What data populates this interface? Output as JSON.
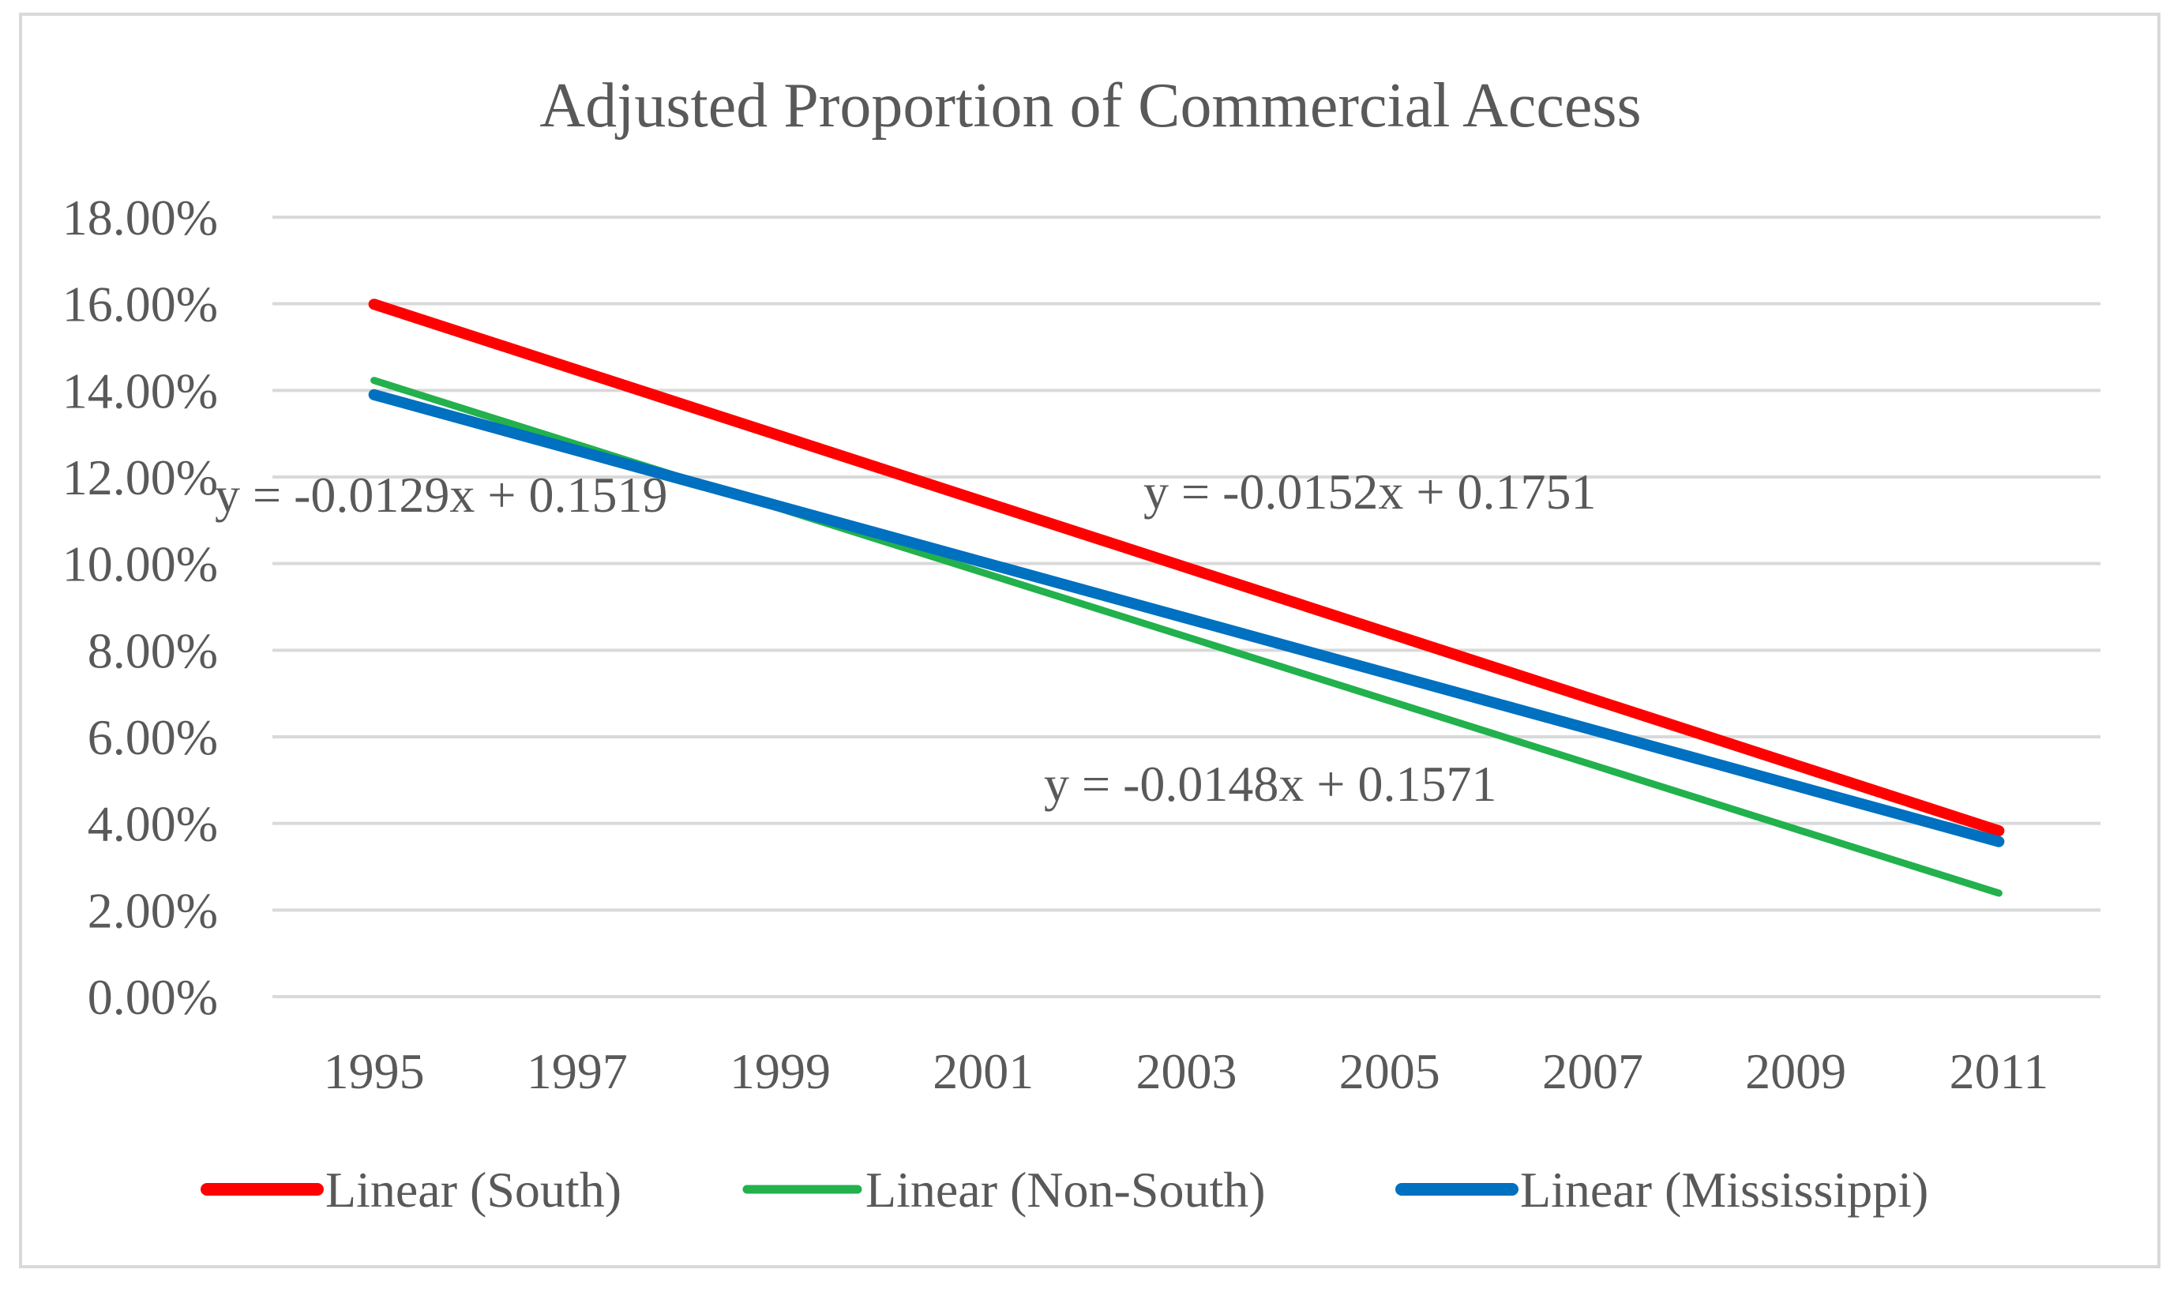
{
  "chart_data": {
    "type": "line",
    "title": "Adjusted Proportion of Commercial Access",
    "xlabel": "",
    "ylabel": "",
    "categories": [
      "1995",
      "1997",
      "1999",
      "2001",
      "2003",
      "2005",
      "2007",
      "2009",
      "2011"
    ],
    "x_positions": [
      1,
      2,
      3,
      4,
      5,
      6,
      7,
      8,
      9
    ],
    "x_range": [
      0.5,
      9.5
    ],
    "ylim": [
      0,
      0.18
    ],
    "yticks": [
      0,
      0.02,
      0.04,
      0.06,
      0.08,
      0.1,
      0.12,
      0.14,
      0.16,
      0.18
    ],
    "ytick_labels": [
      "0.00%",
      "2.00%",
      "4.00%",
      "6.00%",
      "8.00%",
      "10.00%",
      "12.00%",
      "14.00%",
      "16.00%",
      "18.00%"
    ],
    "grid": true,
    "legend_position": "bottom",
    "series": [
      {
        "name": "Linear (South)",
        "color": "#ff0000",
        "x": [
          1,
          9
        ],
        "values": [
          0.1599,
          0.0383
        ]
      },
      {
        "name": "Linear (Non-South)",
        "color": "#22b14c",
        "x": [
          1,
          9
        ],
        "values": [
          0.1423,
          0.0239
        ]
      },
      {
        "name": "Linear (Mississippi)",
        "color": "#0070c0",
        "x": [
          1,
          9
        ],
        "values": [
          0.139,
          0.0358
        ]
      }
    ],
    "annotations": [
      {
        "text": "y = -0.0129x + 0.1519"
      },
      {
        "text": "y = -0.0152x + 0.1751"
      },
      {
        "text": "y = -0.0148x + 0.1571"
      }
    ]
  }
}
